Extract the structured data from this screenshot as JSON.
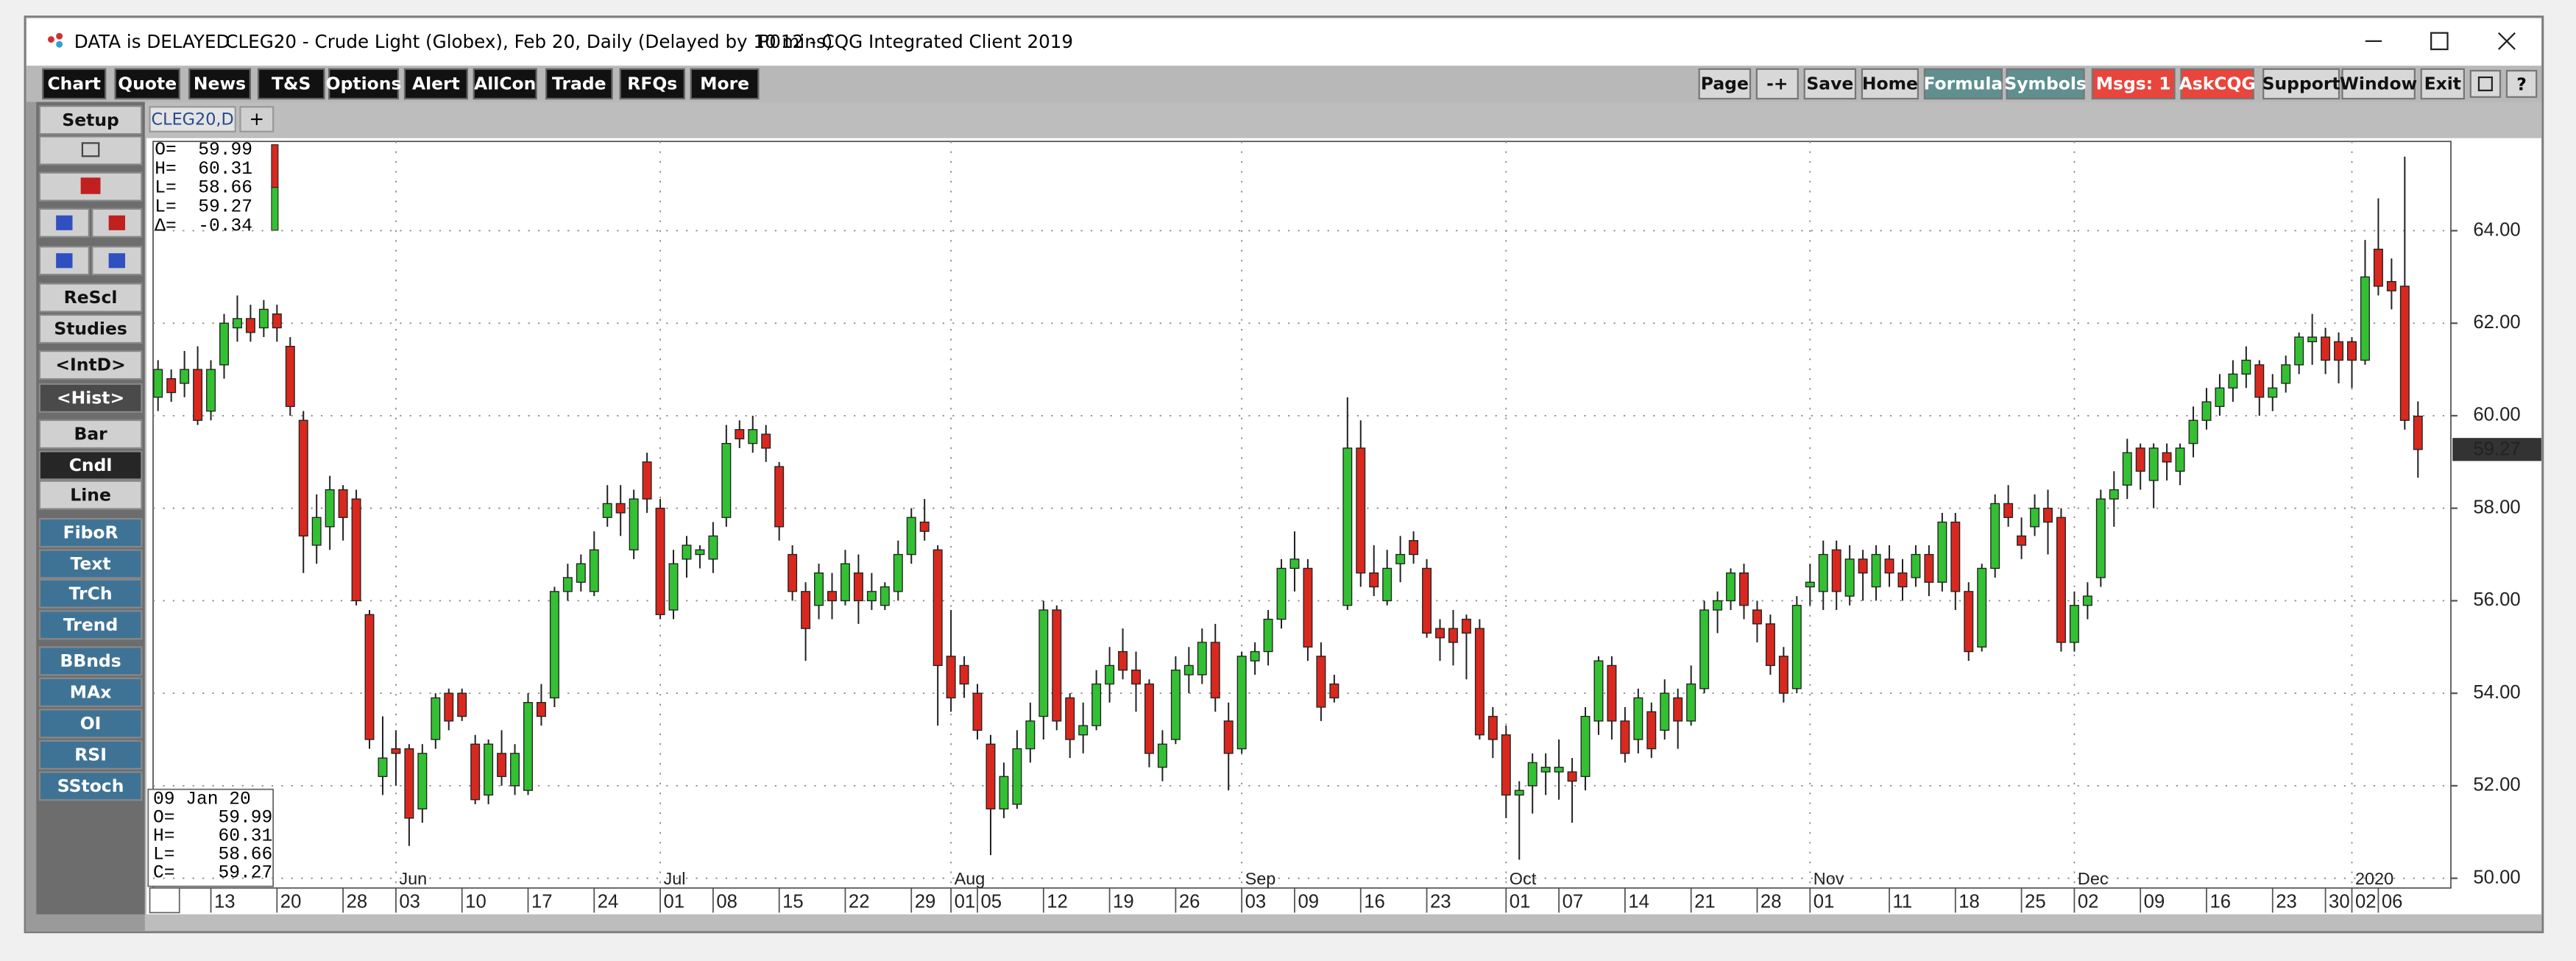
{
  "window": {
    "delayed": "DATA is DELAYED",
    "title": "CLEG20 - Crude Light (Globex), Feb 20, Daily (Delayed by 10 mins)",
    "app": "P012 - CQG Integrated Client 2019"
  },
  "toolbar": {
    "left": [
      "Chart",
      "Quote",
      "News",
      "T&S",
      "Options",
      "Alert",
      "AllCon",
      "Trade",
      "RFQs",
      "More"
    ],
    "right": [
      "Page",
      "-+",
      "Save",
      "Home",
      "Formula",
      "Symbols",
      "Msgs: 1",
      "AskCQG",
      "Support",
      "Window",
      "Exit"
    ]
  },
  "sidebar": [
    "Setup",
    "ReScl",
    "Studies",
    "<IntD>",
    "<Hist>",
    "Bar",
    "Cndl",
    "Line",
    "FiboR",
    "Text",
    "TrCh",
    "Trend",
    "BBnds",
    "MAx",
    "OI",
    "RSI",
    "SStoch"
  ],
  "tabs": [
    "CLEG20,D",
    "+"
  ],
  "chart_data": {
    "type": "candlestick",
    "info_top": [
      "O=  59.99",
      "H=  60.31",
      "L=  58.66",
      "L=  59.27",
      "Δ=  -0.34"
    ],
    "info_bottom": [
      "09 Jan 20",
      "O=    59.99",
      "H=    60.31",
      "L=    58.66",
      "C=    59.27"
    ],
    "last_label": "59.27",
    "up_color": "#33c033",
    "down_color": "#d9281e",
    "candles": [
      [
        60.4,
        61.2,
        60.1,
        61.0
      ],
      [
        60.8,
        61.0,
        60.3,
        60.5
      ],
      [
        60.7,
        61.4,
        60.4,
        61.0
      ],
      [
        61.0,
        61.5,
        59.8,
        59.9
      ],
      [
        60.1,
        61.2,
        59.9,
        61.0
      ],
      [
        61.1,
        62.2,
        60.8,
        62.0
      ],
      [
        61.9,
        62.6,
        61.6,
        62.1
      ],
      [
        62.1,
        62.4,
        61.6,
        61.8
      ],
      [
        61.9,
        62.5,
        61.7,
        62.3
      ],
      [
        62.2,
        62.4,
        61.6,
        61.9
      ],
      [
        61.5,
        61.7,
        60.0,
        60.2
      ],
      [
        59.9,
        60.1,
        56.6,
        57.4
      ],
      [
        57.2,
        58.3,
        56.8,
        57.8
      ],
      [
        57.6,
        58.7,
        57.1,
        58.4
      ],
      [
        58.4,
        58.5,
        57.3,
        57.8
      ],
      [
        58.2,
        58.4,
        55.9,
        56.0
      ],
      [
        55.7,
        55.8,
        52.8,
        53.0
      ],
      [
        52.2,
        53.5,
        51.8,
        52.6
      ],
      [
        52.8,
        53.2,
        52.0,
        52.7
      ],
      [
        52.8,
        52.9,
        50.7,
        51.3
      ],
      [
        51.5,
        52.9,
        51.2,
        52.7
      ],
      [
        53.0,
        54.0,
        52.8,
        53.9
      ],
      [
        54.0,
        54.1,
        53.2,
        53.4
      ],
      [
        54.0,
        54.1,
        53.4,
        53.5
      ],
      [
        52.9,
        53.1,
        51.6,
        51.7
      ],
      [
        51.8,
        53.0,
        51.6,
        52.9
      ],
      [
        52.7,
        53.2,
        52.0,
        52.2
      ],
      [
        52.0,
        52.9,
        51.8,
        52.7
      ],
      [
        51.9,
        54.0,
        51.8,
        53.8
      ],
      [
        53.8,
        54.2,
        53.3,
        53.5
      ],
      [
        53.9,
        56.3,
        53.7,
        56.2
      ],
      [
        56.2,
        56.8,
        56.0,
        56.5
      ],
      [
        56.4,
        57.0,
        56.2,
        56.8
      ],
      [
        56.2,
        57.5,
        56.1,
        57.1
      ],
      [
        57.8,
        58.5,
        57.6,
        58.1
      ],
      [
        58.1,
        58.5,
        57.4,
        57.9
      ],
      [
        57.1,
        58.4,
        56.9,
        58.2
      ],
      [
        59.0,
        59.2,
        57.9,
        58.2
      ],
      [
        58.0,
        58.2,
        55.6,
        55.7
      ],
      [
        55.8,
        57.1,
        55.6,
        56.8
      ],
      [
        56.9,
        57.4,
        56.5,
        57.2
      ],
      [
        57.0,
        57.2,
        56.7,
        57.1
      ],
      [
        56.9,
        57.7,
        56.6,
        57.4
      ],
      [
        57.8,
        59.8,
        57.6,
        59.4
      ],
      [
        59.7,
        59.9,
        59.3,
        59.5
      ],
      [
        59.4,
        60.0,
        59.2,
        59.7
      ],
      [
        59.6,
        59.8,
        59.0,
        59.3
      ],
      [
        58.9,
        59.0,
        57.3,
        57.6
      ],
      [
        57.0,
        57.2,
        56.0,
        56.2
      ],
      [
        56.2,
        56.4,
        54.7,
        55.4
      ],
      [
        55.9,
        56.8,
        55.6,
        56.6
      ],
      [
        56.2,
        56.6,
        55.6,
        56.0
      ],
      [
        56.0,
        57.1,
        55.9,
        56.8
      ],
      [
        56.6,
        57.0,
        55.5,
        56.0
      ],
      [
        56.0,
        56.6,
        55.8,
        56.2
      ],
      [
        55.9,
        56.4,
        55.8,
        56.3
      ],
      [
        56.2,
        57.3,
        56.0,
        57.0
      ],
      [
        57.0,
        58.0,
        56.8,
        57.8
      ],
      [
        57.7,
        58.2,
        57.3,
        57.5
      ],
      [
        57.1,
        57.2,
        53.3,
        54.6
      ],
      [
        54.8,
        55.8,
        53.6,
        53.9
      ],
      [
        54.6,
        54.8,
        53.9,
        54.2
      ],
      [
        54.0,
        54.2,
        53.0,
        53.2
      ],
      [
        52.9,
        53.1,
        50.5,
        51.5
      ],
      [
        51.5,
        52.5,
        51.3,
        52.2
      ],
      [
        51.6,
        53.2,
        51.5,
        52.8
      ],
      [
        52.8,
        53.8,
        52.5,
        53.4
      ],
      [
        53.5,
        56.0,
        53.0,
        55.8
      ],
      [
        55.8,
        55.9,
        53.2,
        53.4
      ],
      [
        53.9,
        54.0,
        52.6,
        53.0
      ],
      [
        53.1,
        53.8,
        52.7,
        53.3
      ],
      [
        53.3,
        54.5,
        53.2,
        54.2
      ],
      [
        54.2,
        55.0,
        53.8,
        54.6
      ],
      [
        54.9,
        55.4,
        54.3,
        54.5
      ],
      [
        54.5,
        54.9,
        53.6,
        54.2
      ],
      [
        54.2,
        54.3,
        52.4,
        52.7
      ],
      [
        52.4,
        53.2,
        52.1,
        52.9
      ],
      [
        53.0,
        54.8,
        52.9,
        54.5
      ],
      [
        54.4,
        55.0,
        54.0,
        54.6
      ],
      [
        54.4,
        55.4,
        54.2,
        55.1
      ],
      [
        55.1,
        55.5,
        53.6,
        53.9
      ],
      [
        53.4,
        53.8,
        51.9,
        52.7
      ],
      [
        52.8,
        54.9,
        52.7,
        54.8
      ],
      [
        54.7,
        55.1,
        54.4,
        54.9
      ],
      [
        54.9,
        55.8,
        54.6,
        55.6
      ],
      [
        55.6,
        56.9,
        55.4,
        56.7
      ],
      [
        56.7,
        57.5,
        56.2,
        56.9
      ],
      [
        56.7,
        56.9,
        54.7,
        55.0
      ],
      [
        54.8,
        55.1,
        53.4,
        53.7
      ],
      [
        54.2,
        54.4,
        53.8,
        53.9
      ],
      [
        55.9,
        60.4,
        55.8,
        59.3
      ],
      [
        59.3,
        59.9,
        56.3,
        56.6
      ],
      [
        56.6,
        57.2,
        56.1,
        56.3
      ],
      [
        56.0,
        57.1,
        55.9,
        56.7
      ],
      [
        56.8,
        57.4,
        56.4,
        57.0
      ],
      [
        57.3,
        57.5,
        56.8,
        57.0
      ],
      [
        56.7,
        56.9,
        55.2,
        55.3
      ],
      [
        55.4,
        55.6,
        54.7,
        55.2
      ],
      [
        55.4,
        55.8,
        54.6,
        55.1
      ],
      [
        55.6,
        55.7,
        54.3,
        55.3
      ],
      [
        55.4,
        55.6,
        53.0,
        53.1
      ],
      [
        53.5,
        53.7,
        52.6,
        53.0
      ],
      [
        53.1,
        53.3,
        51.3,
        51.8
      ],
      [
        51.8,
        52.1,
        50.4,
        51.9
      ],
      [
        52.0,
        52.7,
        51.4,
        52.5
      ],
      [
        52.3,
        52.7,
        51.8,
        52.4
      ],
      [
        52.3,
        53.0,
        51.7,
        52.4
      ],
      [
        52.3,
        52.6,
        51.2,
        52.1
      ],
      [
        52.2,
        53.7,
        51.9,
        53.5
      ],
      [
        53.4,
        54.8,
        53.1,
        54.7
      ],
      [
        54.6,
        54.8,
        53.0,
        53.4
      ],
      [
        53.4,
        53.7,
        52.5,
        52.7
      ],
      [
        53.0,
        54.1,
        52.7,
        53.9
      ],
      [
        53.6,
        53.8,
        52.6,
        52.8
      ],
      [
        53.2,
        54.3,
        53.0,
        54.0
      ],
      [
        53.9,
        54.1,
        52.8,
        53.4
      ],
      [
        53.4,
        54.6,
        53.3,
        54.2
      ],
      [
        54.1,
        56.0,
        54.0,
        55.8
      ],
      [
        55.8,
        56.2,
        55.3,
        56.0
      ],
      [
        56.0,
        56.7,
        55.8,
        56.6
      ],
      [
        56.6,
        56.8,
        55.6,
        55.9
      ],
      [
        55.8,
        56.0,
        55.1,
        55.5
      ],
      [
        55.5,
        55.7,
        54.4,
        54.6
      ],
      [
        54.8,
        55.0,
        53.8,
        54.0
      ],
      [
        54.1,
        56.1,
        54.0,
        55.9
      ],
      [
        56.3,
        56.8,
        55.9,
        56.4
      ],
      [
        56.2,
        57.3,
        55.8,
        57.0
      ],
      [
        57.1,
        57.3,
        55.8,
        56.2
      ],
      [
        56.1,
        57.2,
        55.9,
        56.9
      ],
      [
        56.9,
        57.1,
        56.0,
        56.6
      ],
      [
        56.3,
        57.2,
        56.0,
        57.0
      ],
      [
        56.9,
        57.2,
        56.3,
        56.6
      ],
      [
        56.6,
        56.9,
        56.0,
        56.3
      ],
      [
        56.5,
        57.2,
        56.3,
        57.0
      ],
      [
        57.0,
        57.2,
        56.1,
        56.4
      ],
      [
        56.4,
        57.9,
        56.2,
        57.7
      ],
      [
        57.7,
        57.9,
        55.8,
        56.2
      ],
      [
        56.2,
        56.4,
        54.7,
        54.9
      ],
      [
        55.0,
        56.8,
        54.9,
        56.7
      ],
      [
        56.7,
        58.3,
        56.5,
        58.1
      ],
      [
        58.1,
        58.5,
        57.6,
        57.8
      ],
      [
        57.4,
        57.8,
        56.9,
        57.2
      ],
      [
        57.6,
        58.3,
        57.4,
        58.0
      ],
      [
        58.0,
        58.4,
        57.0,
        57.7
      ],
      [
        57.8,
        58.0,
        54.9,
        55.1
      ],
      [
        55.1,
        56.2,
        54.9,
        55.9
      ],
      [
        55.9,
        56.4,
        55.6,
        56.1
      ],
      [
        56.5,
        58.4,
        56.3,
        58.2
      ],
      [
        58.2,
        58.8,
        57.6,
        58.4
      ],
      [
        58.5,
        59.5,
        58.2,
        59.2
      ],
      [
        59.3,
        59.4,
        58.4,
        58.8
      ],
      [
        58.6,
        59.4,
        58.0,
        59.3
      ],
      [
        59.2,
        59.4,
        58.6,
        59.0
      ],
      [
        58.8,
        59.4,
        58.5,
        59.3
      ],
      [
        59.4,
        60.2,
        59.1,
        59.9
      ],
      [
        59.9,
        60.6,
        59.7,
        60.3
      ],
      [
        60.2,
        60.9,
        60.0,
        60.6
      ],
      [
        60.6,
        61.2,
        60.3,
        60.9
      ],
      [
        60.9,
        61.5,
        60.6,
        61.2
      ],
      [
        61.1,
        61.2,
        60.0,
        60.4
      ],
      [
        60.4,
        60.9,
        60.1,
        60.6
      ],
      [
        60.7,
        61.3,
        60.5,
        61.1
      ],
      [
        61.1,
        61.8,
        60.9,
        61.7
      ],
      [
        61.6,
        62.2,
        61.1,
        61.7
      ],
      [
        61.7,
        61.9,
        60.9,
        61.2
      ],
      [
        61.6,
        61.8,
        60.7,
        61.2
      ],
      [
        61.6,
        61.7,
        60.6,
        61.2
      ],
      [
        61.2,
        63.8,
        61.1,
        63.0
      ],
      [
        63.6,
        64.7,
        62.6,
        62.8
      ],
      [
        62.9,
        63.4,
        62.3,
        62.7
      ],
      [
        62.8,
        65.6,
        59.7,
        59.9
      ],
      [
        59.99,
        60.31,
        58.66,
        59.27
      ]
    ],
    "ylim": [
      49.79,
      65.93
    ],
    "yticks": [
      {
        "value": 50,
        "label": "50.00"
      },
      {
        "value": 52,
        "label": "52.00"
      },
      {
        "value": 54,
        "label": "54.00"
      },
      {
        "value": 56,
        "label": "56.00"
      },
      {
        "value": 58,
        "label": "58.00"
      },
      {
        "value": 60,
        "label": "60.00"
      },
      {
        "value": 62,
        "label": "62.00"
      },
      {
        "value": 64,
        "label": "64.00"
      }
    ],
    "xticks": [
      {
        "value": 4,
        "label": "13"
      },
      {
        "value": 9,
        "label": "20"
      },
      {
        "value": 14,
        "label": "28"
      },
      {
        "value": 18,
        "label": "03"
      },
      {
        "value": 23,
        "label": "10"
      },
      {
        "value": 28,
        "label": "17"
      },
      {
        "value": 33,
        "label": "24"
      },
      {
        "value": 38,
        "label": "01"
      },
      {
        "value": 42,
        "label": "08"
      },
      {
        "value": 47,
        "label": "15"
      },
      {
        "value": 52,
        "label": "22"
      },
      {
        "value": 57,
        "label": "29"
      },
      {
        "value": 60,
        "label": "01"
      },
      {
        "value": 62,
        "label": "05"
      },
      {
        "value": 67,
        "label": "12"
      },
      {
        "value": 72,
        "label": "19"
      },
      {
        "value": 77,
        "label": "26"
      },
      {
        "value": 82,
        "label": "03"
      },
      {
        "value": 86,
        "label": "09"
      },
      {
        "value": 91,
        "label": "16"
      },
      {
        "value": 96,
        "label": "23"
      },
      {
        "value": 102,
        "label": "01"
      },
      {
        "value": 106,
        "label": "07"
      },
      {
        "value": 111,
        "label": "14"
      },
      {
        "value": 116,
        "label": "21"
      },
      {
        "value": 121,
        "label": "28"
      },
      {
        "value": 125,
        "label": "01"
      },
      {
        "value": 131,
        "label": "11"
      },
      {
        "value": 136,
        "label": "18"
      },
      {
        "value": 141,
        "label": "25"
      },
      {
        "value": 145,
        "label": "02"
      },
      {
        "value": 150,
        "label": "09"
      },
      {
        "value": 155,
        "label": "16"
      },
      {
        "value": 160,
        "label": "23"
      },
      {
        "value": 164,
        "label": "30"
      },
      {
        "value": 166,
        "label": "02"
      },
      {
        "value": 168,
        "label": "06"
      }
    ],
    "month_ticks": [
      {
        "value": 18,
        "label": "Jun"
      },
      {
        "value": 38,
        "label": "Jul"
      },
      {
        "value": 60,
        "label": "Aug"
      },
      {
        "value": 82,
        "label": "Sep"
      },
      {
        "value": 102,
        "label": "Oct"
      },
      {
        "value": 125,
        "label": "Nov"
      },
      {
        "value": 145,
        "label": "Dec"
      },
      {
        "value": 166,
        "label": "2020"
      }
    ],
    "grid": true
  }
}
